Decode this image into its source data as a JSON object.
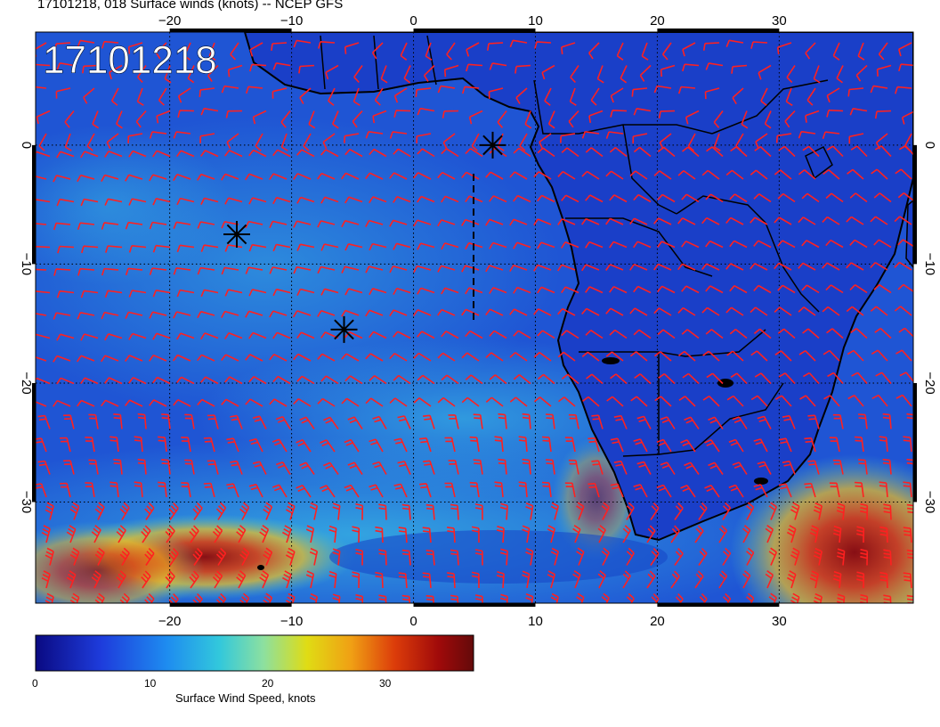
{
  "title": "17101218, 018 Surface winds (knots) -- NCEP GFS",
  "stamp": "17101218",
  "map": {
    "lon_ticks": [
      "-20",
      "-10",
      "0",
      "10",
      "20",
      "30"
    ],
    "lat_ticks": [
      "0",
      "-10",
      "-20",
      "-30"
    ],
    "lon_range": [
      -31,
      41
    ],
    "lat_range": [
      -38.5,
      9.5
    ],
    "grid": "dotted, 10 degree",
    "barb_color": "#ff2020",
    "storm_markers": [
      {
        "lon": 6.5,
        "lat": 0.0
      },
      {
        "lon": -14.5,
        "lat": -7.5
      },
      {
        "lon": -5.7,
        "lat": -15.5
      }
    ]
  },
  "colorbar": {
    "title": "Surface Wind Speed, knots",
    "ticks": [
      "0",
      "10",
      "20",
      "30"
    ],
    "range": [
      0,
      37
    ],
    "colors": [
      "#0a0a82",
      "#1e3cdc",
      "#1e8cf0",
      "#32c8dc",
      "#8ce0a0",
      "#e0dc14",
      "#f0a014",
      "#dc3c0a",
      "#a00a0a",
      "#640a0a"
    ]
  }
}
